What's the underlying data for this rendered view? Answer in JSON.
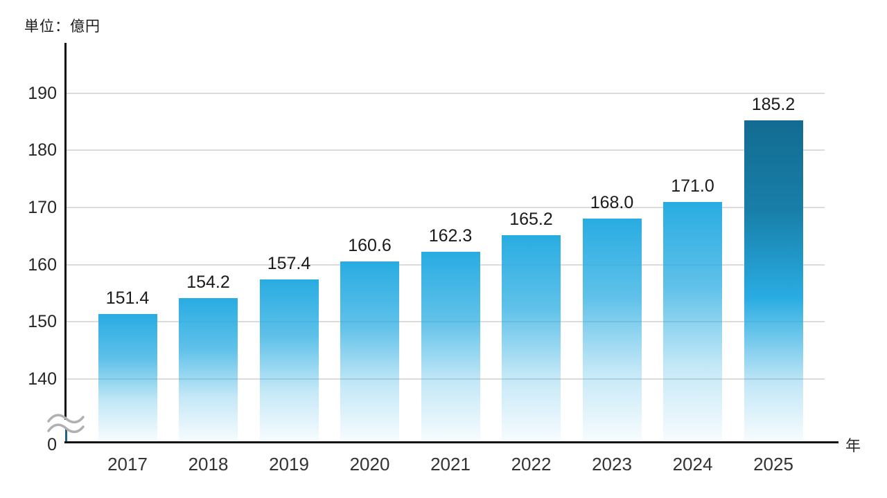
{
  "chart_data": {
    "type": "bar",
    "title": "",
    "unit_label": "単位：億円",
    "xlabel": "年",
    "ylabel": "",
    "categories": [
      "2017",
      "2018",
      "2019",
      "2020",
      "2021",
      "2022",
      "2023",
      "2024",
      "2025"
    ],
    "values": [
      151.4,
      154.2,
      157.4,
      160.6,
      162.3,
      165.2,
      168.0,
      171.0,
      185.2
    ],
    "value_decimals": 1,
    "y_ticks": [
      190,
      180,
      170,
      160,
      150,
      140
    ],
    "zero_tick_label": "0",
    "ylim": [
      140,
      196
    ],
    "axis_break": true,
    "grid": true,
    "legend": false,
    "highlight_index": 8,
    "colors": {
      "bar": "#29ace2",
      "bar_highlight": "#136b91",
      "gridline": "#dcdcdc",
      "axis": "#0d0d0d",
      "axis_stub": "#1d6387",
      "break_glyph": "#b0b0b0",
      "value_label": "#1a1a1a",
      "tick_label": "#262626",
      "year_label": "#333333"
    }
  }
}
